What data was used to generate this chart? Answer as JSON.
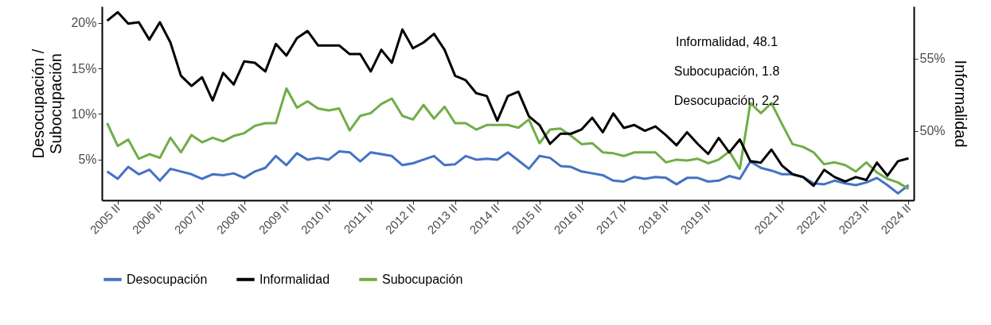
{
  "chart_data": {
    "type": "line",
    "ylabel": "Desocupación / Subocupación",
    "y2label": "Informalidad",
    "annotations": [
      "Informalidad, 48.1",
      "Subocupación, 1.8",
      "Desocupación, 2.2"
    ],
    "categories": [
      null,
      "2005 II",
      null,
      null,
      null,
      "2006 II",
      null,
      null,
      null,
      "2007 II",
      null,
      null,
      null,
      "2008 II",
      null,
      null,
      null,
      "2009 II",
      null,
      null,
      null,
      "2010 II",
      null,
      null,
      null,
      "2011 II",
      null,
      null,
      null,
      "2012 II",
      null,
      null,
      null,
      "2013 II",
      null,
      null,
      null,
      "2014 II",
      null,
      null,
      null,
      "2015 II",
      null,
      null,
      null,
      "2016 II",
      null,
      null,
      null,
      "2017 II",
      null,
      null,
      null,
      "2018 II",
      null,
      null,
      null,
      "2019 II",
      null,
      null,
      null,
      null,
      null,
      null,
      "2021 II",
      null,
      null,
      null,
      "2022 II",
      null,
      null,
      null,
      "2023 II",
      null,
      null,
      null,
      "2024 II"
    ],
    "series": [
      {
        "name": "Desocupación",
        "color": "#4472c4",
        "values": [
          3.7,
          2.9,
          4.2,
          3.4,
          3.9,
          2.7,
          4.0,
          3.7,
          3.4,
          2.9,
          3.4,
          3.3,
          3.5,
          3.0,
          3.7,
          4.1,
          5.4,
          4.4,
          5.7,
          5.0,
          5.2,
          5.0,
          5.9,
          5.8,
          4.8,
          5.8,
          5.6,
          5.4,
          4.4,
          4.6,
          5.0,
          5.4,
          4.4,
          4.5,
          5.4,
          5.0,
          5.1,
          5.0,
          5.8,
          4.9,
          4.0,
          5.4,
          5.2,
          4.3,
          4.2,
          3.7,
          3.5,
          3.3,
          2.7,
          2.6,
          3.1,
          2.9,
          3.1,
          3.0,
          2.3,
          3.0,
          3.0,
          2.6,
          2.7,
          3.2,
          2.9,
          4.8,
          4.1,
          3.8,
          3.4,
          3.4,
          3.1,
          2.4,
          2.3,
          2.7,
          2.4,
          2.2,
          2.5,
          3.0,
          2.2,
          1.3,
          2.2
        ]
      },
      {
        "name": "Informalidad",
        "color": "#000000",
        "axis": "y2",
        "values": [
          57.6,
          58.2,
          57.4,
          57.5,
          56.3,
          57.5,
          56.1,
          53.8,
          53.1,
          53.7,
          52.1,
          54.0,
          53.2,
          54.8,
          54.7,
          54.1,
          56.0,
          55.2,
          56.4,
          56.9,
          55.9,
          55.9,
          55.9,
          55.3,
          55.3,
          54.1,
          55.6,
          54.7,
          57.0,
          55.7,
          56.1,
          56.7,
          55.6,
          53.8,
          53.5,
          52.6,
          52.4,
          50.7,
          52.4,
          52.7,
          51.0,
          50.4,
          49.1,
          49.8,
          49.8,
          50.1,
          50.9,
          49.9,
          51.2,
          50.2,
          50.4,
          50.0,
          50.3,
          49.7,
          49.0,
          49.9,
          49.1,
          48.4,
          49.5,
          48.5,
          49.4,
          47.9,
          47.8,
          48.7,
          47.6,
          47.0,
          46.8,
          46.2,
          47.3,
          46.8,
          46.5,
          46.8,
          46.6,
          47.8,
          46.9,
          47.9,
          48.1
        ]
      },
      {
        "name": "Subocupación",
        "color": "#70ad47",
        "values": [
          9.0,
          6.5,
          7.2,
          5.1,
          5.6,
          5.2,
          7.4,
          5.8,
          7.7,
          6.9,
          7.4,
          7.0,
          7.6,
          7.9,
          8.7,
          9.0,
          9.0,
          12.8,
          10.7,
          11.4,
          10.6,
          10.4,
          10.6,
          8.2,
          9.8,
          10.1,
          11.1,
          11.7,
          9.8,
          9.4,
          11.0,
          9.5,
          10.8,
          9.0,
          9.0,
          8.3,
          8.8,
          8.8,
          8.8,
          8.5,
          9.4,
          6.8,
          8.3,
          8.4,
          7.6,
          6.7,
          6.8,
          5.8,
          5.7,
          5.4,
          5.8,
          5.8,
          5.8,
          4.7,
          5.0,
          4.9,
          5.1,
          4.6,
          5.0,
          5.9,
          4.0,
          11.2,
          10.1,
          11.2,
          8.9,
          6.7,
          6.4,
          5.8,
          4.5,
          4.7,
          4.4,
          3.7,
          4.7,
          3.6,
          2.9,
          2.5,
          1.8
        ]
      }
    ],
    "ylim": [
      0.55,
      21.8
    ],
    "yticks": [
      {
        "value": 5,
        "label": "5%"
      },
      {
        "value": 10,
        "label": "10%"
      },
      {
        "value": 15,
        "label": "15%"
      },
      {
        "value": 20,
        "label": "20%"
      }
    ],
    "y2lim": [
      45.2,
      58.6
    ],
    "y2ticks": [
      {
        "value": 50,
        "label": "50%"
      },
      {
        "value": 55,
        "label": "55%"
      }
    ],
    "legend": "bottom",
    "grid": false
  }
}
